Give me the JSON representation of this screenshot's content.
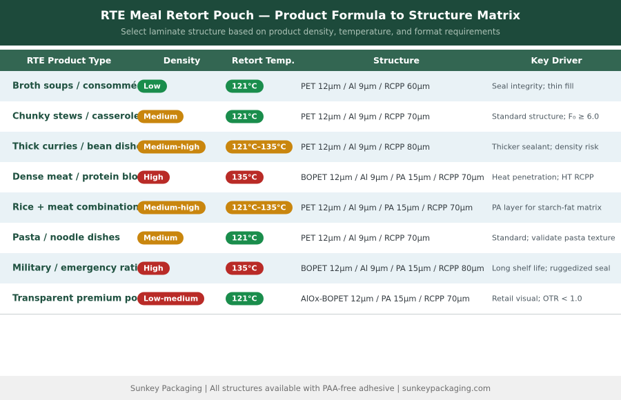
{
  "theme": {
    "banner_bg": "#1d4a3b",
    "thead_bg": "#336652",
    "row_alt_bg": "#e9f2f6",
    "row_bg": "#ffffff",
    "badge_green": "#1a8d4c",
    "badge_amber": "#c9860e",
    "badge_red": "#b92b27",
    "product_text": "#1f5140",
    "footer_bg": "#f0f0f0"
  },
  "banner": {
    "title": "RTE Meal Retort Pouch — Product Formula to Structure Matrix",
    "subtitle": "Select laminate structure based on product density, temperature, and format requirements"
  },
  "table": {
    "columns": [
      "RTE Product Type",
      "Density",
      "Retort Temp.",
      "Structure",
      "Key Driver"
    ],
    "rows": [
      {
        "product": "Broth soups / consommé",
        "density": "Low",
        "density_color": "green",
        "temp": "121°C",
        "temp_color": "green",
        "structure": "PET 12μm / Al 9μm / RCPP 60μm",
        "driver": "Seal integrity; thin fill"
      },
      {
        "product": "Chunky stews / casseroles",
        "density": "Medium",
        "density_color": "amber",
        "temp": "121°C",
        "temp_color": "green",
        "structure": "PET 12μm / Al 9μm / RCPP 70μm",
        "driver": "Standard structure; F₀ ≥ 6.0"
      },
      {
        "product": "Thick curries / bean dishes",
        "density": "Medium-high",
        "density_color": "amber",
        "temp": "121°C–135°C",
        "temp_color": "amber",
        "structure": "PET 12μm / Al 9μm / RCPP 80μm",
        "driver": "Thicker sealant; density risk"
      },
      {
        "product": "Dense meat / protein blocks",
        "density": "High",
        "density_color": "red",
        "temp": "135°C",
        "temp_color": "red",
        "structure": "BOPET 12μm / Al 9μm / PA 15μm / RCPP 70μm",
        "driver": "Heat penetration; HT RCPP"
      },
      {
        "product": "Rice + meat combinations",
        "density": "Medium-high",
        "density_color": "amber",
        "temp": "121°C–135°C",
        "temp_color": "amber",
        "structure": "PET 12μm / Al 9μm / PA 15μm / RCPP 70μm",
        "driver": "PA layer for starch-fat matrix"
      },
      {
        "product": "Pasta / noodle dishes",
        "density": "Medium",
        "density_color": "amber",
        "temp": "121°C",
        "temp_color": "green",
        "structure": "PET 12μm / Al 9μm / RCPP 70μm",
        "driver": "Standard; validate pasta texture"
      },
      {
        "product": "Military / emergency rations",
        "density": "High",
        "density_color": "red",
        "temp": "135°C",
        "temp_color": "red",
        "structure": "BOPET 12μm / Al 9μm / PA 15μm / RCPP 80μm",
        "driver": "Long shelf life; ruggedized seal"
      },
      {
        "product": "Transparent premium pouches",
        "density": "Low-medium",
        "density_color": "red",
        "temp": "121°C",
        "temp_color": "green",
        "structure": "AlOx-BOPET 12μm / PA 15μm / RCPP 70μm",
        "driver": "Retail visual; OTR < 1.0"
      }
    ]
  },
  "footer": {
    "text": "Sunkey Packaging  |  All structures available with PAA-free adhesive  |  sunkeypackaging.com"
  }
}
